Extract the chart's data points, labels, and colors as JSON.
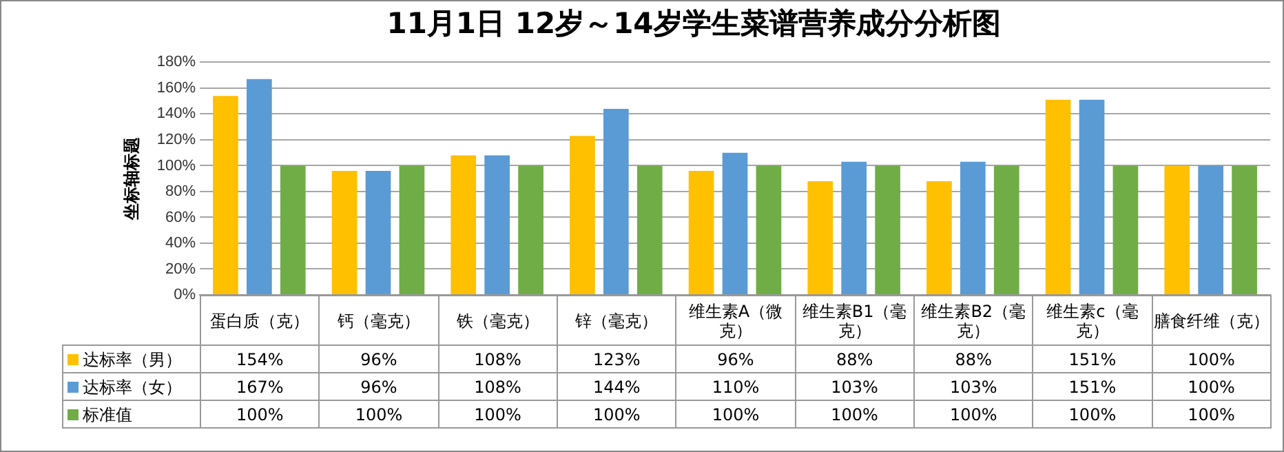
{
  "chart_data": {
    "type": "bar",
    "title": "11月1日 12岁～14岁学生菜谱营养成分分析图",
    "ylabel": "坐标轴标题",
    "categories": [
      "蛋白质（克）",
      "钙（毫克）",
      "铁（毫克）",
      "锌（毫克）",
      "维生素A（微克）",
      "维生素B1（毫克）",
      "维生素B2（毫克）",
      "维生素c（毫克）",
      "膳食纤维（克）"
    ],
    "series": [
      {
        "name": "达标率（男）",
        "color": "#ffc000",
        "values": [
          154,
          96,
          108,
          123,
          96,
          88,
          88,
          151,
          100
        ],
        "value_labels": [
          "154%",
          "96%",
          "108%",
          "123%",
          "96%",
          "88%",
          "88%",
          "151%",
          "100%"
        ]
      },
      {
        "name": "达标率（女）",
        "color": "#5b9bd5",
        "values": [
          167,
          96,
          108,
          144,
          110,
          103,
          103,
          151,
          100
        ],
        "value_labels": [
          "167%",
          "96%",
          "108%",
          "144%",
          "110%",
          "103%",
          "103%",
          "151%",
          "100%"
        ]
      },
      {
        "name": "标准值",
        "color": "#70ad47",
        "values": [
          100,
          100,
          100,
          100,
          100,
          100,
          100,
          100,
          100
        ],
        "value_labels": [
          "100%",
          "100%",
          "100%",
          "100%",
          "100%",
          "100%",
          "100%",
          "100%",
          "100%"
        ]
      }
    ],
    "ylim": [
      0,
      180
    ],
    "yticks": [
      {
        "value": 0,
        "label": "0%"
      },
      {
        "value": 20,
        "label": "20%"
      },
      {
        "value": 40,
        "label": "40%"
      },
      {
        "value": 60,
        "label": "60%"
      },
      {
        "value": 80,
        "label": "80%"
      },
      {
        "value": 100,
        "label": "100%"
      },
      {
        "value": 120,
        "label": "120%"
      },
      {
        "value": 140,
        "label": "140%"
      },
      {
        "value": 160,
        "label": "160%"
      },
      {
        "value": 180,
        "label": "180%"
      }
    ],
    "grid": "y",
    "legend": "bottom"
  }
}
